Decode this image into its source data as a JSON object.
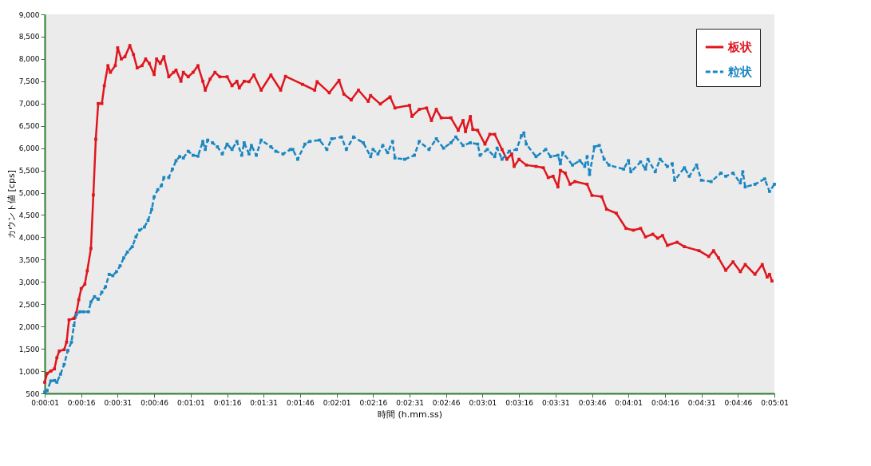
{
  "chart_data": {
    "type": "line",
    "xlabel": "時間 (h.mm.ss)",
    "ylabel": "カウント値 [cps]",
    "xlim": [
      1,
      301
    ],
    "ylim": [
      500,
      9000
    ],
    "xticks": [
      {
        "value": 1,
        "label": "0:00:01"
      },
      {
        "value": 16,
        "label": "0:00:16"
      },
      {
        "value": 31,
        "label": "0:00:31"
      },
      {
        "value": 46,
        "label": "0:00:46"
      },
      {
        "value": 61,
        "label": "0:01:01"
      },
      {
        "value": 76,
        "label": "0:01:16"
      },
      {
        "value": 91,
        "label": "0:01:31"
      },
      {
        "value": 106,
        "label": "0:01:46"
      },
      {
        "value": 121,
        "label": "0:02:01"
      },
      {
        "value": 136,
        "label": "0:02:16"
      },
      {
        "value": 151,
        "label": "0:02:31"
      },
      {
        "value": 166,
        "label": "0:02:46"
      },
      {
        "value": 181,
        "label": "0:03:01"
      },
      {
        "value": 196,
        "label": "0:03:16"
      },
      {
        "value": 211,
        "label": "0:03:31"
      },
      {
        "value": 226,
        "label": "0:03:46"
      },
      {
        "value": 241,
        "label": "0:04:01"
      },
      {
        "value": 256,
        "label": "0:04:16"
      },
      {
        "value": 271,
        "label": "0:04:31"
      },
      {
        "value": 286,
        "label": "0:04:46"
      },
      {
        "value": 301,
        "label": "0:05:01"
      }
    ],
    "yticks": [
      {
        "value": 500,
        "label": "500"
      },
      {
        "value": 1000,
        "label": "1,000"
      },
      {
        "value": 1500,
        "label": "1,500"
      },
      {
        "value": 2000,
        "label": "2,000"
      },
      {
        "value": 2500,
        "label": "2,500"
      },
      {
        "value": 3000,
        "label": "3,000"
      },
      {
        "value": 3500,
        "label": "3,500"
      },
      {
        "value": 4000,
        "label": "4,000"
      },
      {
        "value": 4500,
        "label": "4,500"
      },
      {
        "value": 5000,
        "label": "5,000"
      },
      {
        "value": 5500,
        "label": "5,500"
      },
      {
        "value": 6000,
        "label": "6,000"
      },
      {
        "value": 6500,
        "label": "6,500"
      },
      {
        "value": 7000,
        "label": "7,000"
      },
      {
        "value": 7500,
        "label": "7,500"
      },
      {
        "value": 8000,
        "label": "8,000"
      },
      {
        "value": 8500,
        "label": "8,500"
      },
      {
        "value": 9000,
        "label": "9,000"
      }
    ],
    "grid": false,
    "legend": "top right",
    "marker": "square",
    "series": [
      {
        "name": "板状",
        "color": "#e0161e",
        "line_style": "solid",
        "x": [
          1,
          2,
          3.5,
          5,
          6,
          7,
          9,
          10,
          11,
          13,
          14,
          15,
          16,
          17.5,
          18.5,
          20,
          21,
          22,
          23,
          24.5,
          25.5,
          27,
          28,
          30,
          31,
          32.5,
          34,
          36,
          37.5,
          39,
          41,
          42.5,
          44,
          46,
          47,
          48.5,
          50,
          52,
          54,
          55,
          57,
          58,
          60,
          62,
          64,
          66,
          67,
          69,
          71,
          73,
          76,
          78,
          80,
          81,
          83,
          85,
          87,
          90,
          94,
          98,
          100,
          107,
          112,
          113,
          118,
          122,
          124,
          127,
          130,
          134,
          135,
          139,
          143,
          145,
          151,
          152,
          155,
          158,
          160,
          162,
          164,
          168,
          171,
          173,
          174,
          176,
          177,
          179,
          182,
          184,
          186,
          189,
          191,
          193,
          194,
          196,
          199,
          203,
          206,
          208,
          210,
          212,
          213,
          215,
          217,
          219,
          224,
          226,
          230,
          232,
          236,
          240,
          243,
          246,
          248,
          251,
          253,
          255,
          257,
          261,
          264,
          270,
          274,
          276,
          278,
          281,
          284,
          287,
          289,
          293,
          296,
          298,
          299,
          300
        ],
        "values": [
          750,
          950,
          1000,
          1050,
          1300,
          1450,
          1480,
          1650,
          2150,
          2180,
          2300,
          2600,
          2850,
          2950,
          3250,
          3750,
          4950,
          6200,
          7000,
          7000,
          7400,
          7850,
          7700,
          7850,
          8250,
          8000,
          8050,
          8300,
          8100,
          7800,
          7850,
          8000,
          7900,
          7650,
          8000,
          7900,
          8050,
          7600,
          7700,
          7750,
          7500,
          7700,
          7600,
          7700,
          7850,
          7500,
          7300,
          7550,
          7700,
          7600,
          7600,
          7400,
          7500,
          7350,
          7500,
          7490,
          7640,
          7300,
          7640,
          7300,
          7610,
          7430,
          7300,
          7490,
          7240,
          7520,
          7210,
          7080,
          7300,
          7050,
          7180,
          6990,
          7150,
          6900,
          6960,
          6710,
          6870,
          6900,
          6620,
          6870,
          6680,
          6680,
          6400,
          6620,
          6370,
          6710,
          6420,
          6400,
          6090,
          6310,
          6310,
          5970,
          5750,
          5870,
          5590,
          5750,
          5620,
          5590,
          5560,
          5340,
          5370,
          5130,
          5500,
          5440,
          5190,
          5250,
          5190,
          4940,
          4910,
          4630,
          4540,
          4200,
          4160,
          4200,
          4010,
          4070,
          3980,
          4040,
          3820,
          3890,
          3790,
          3700,
          3570,
          3700,
          3540,
          3260,
          3450,
          3230,
          3390,
          3170,
          3390,
          3110,
          3170,
          3020
        ]
      },
      {
        "name": "粒状",
        "color": "#1a86c2",
        "line_style": "dashed",
        "x": [
          1,
          2,
          3.5,
          5,
          6,
          7.5,
          9,
          10.5,
          12,
          13,
          14,
          15.5,
          17,
          19,
          20,
          21.5,
          23,
          24.5,
          26,
          27.5,
          29,
          30.5,
          32,
          33.5,
          35,
          37,
          38.5,
          40,
          42,
          43.5,
          45,
          46,
          47.5,
          49,
          50,
          52,
          53.5,
          55,
          56.5,
          58,
          60,
          62,
          64,
          66,
          67,
          68,
          70,
          72,
          74,
          76,
          78,
          80,
          82,
          83,
          85,
          86,
          88,
          90,
          94,
          96,
          99,
          102,
          103,
          105,
          108,
          110,
          114,
          117,
          119,
          123,
          125,
          128,
          132,
          135,
          136,
          138,
          140,
          142,
          144,
          145,
          149,
          153,
          155,
          159,
          162,
          165,
          168,
          170,
          173,
          176,
          179,
          180,
          183,
          186,
          187,
          189,
          192,
          195,
          197,
          198,
          199,
          203,
          207,
          209,
          212,
          213,
          214,
          218,
          221,
          223,
          224,
          225,
          227,
          229,
          231,
          233,
          239,
          241,
          242,
          246,
          248,
          249,
          252,
          254,
          257,
          259,
          260,
          264,
          266,
          269,
          271,
          275,
          279,
          281,
          284,
          287,
          288,
          289,
          293,
          297,
          299,
          301
        ],
        "values": [
          530,
          560,
          780,
          790,
          750,
          930,
          1150,
          1460,
          1650,
          2020,
          2270,
          2330,
          2330,
          2330,
          2550,
          2670,
          2610,
          2770,
          2890,
          3170,
          3140,
          3230,
          3360,
          3540,
          3670,
          3790,
          4010,
          4160,
          4230,
          4380,
          4630,
          4910,
          5070,
          5160,
          5340,
          5340,
          5530,
          5720,
          5810,
          5780,
          5930,
          5840,
          5820,
          6150,
          5970,
          6180,
          6120,
          6030,
          5870,
          6090,
          5970,
          6150,
          5840,
          6120,
          5870,
          6060,
          5840,
          6180,
          6030,
          5930,
          5870,
          5970,
          5970,
          5750,
          6090,
          6150,
          6180,
          5970,
          6210,
          6250,
          5970,
          6250,
          6120,
          5810,
          5970,
          5870,
          6060,
          5900,
          6150,
          5780,
          5750,
          5840,
          6150,
          5970,
          6210,
          6000,
          6120,
          6250,
          6060,
          6120,
          6090,
          5840,
          5970,
          5810,
          6000,
          5750,
          5930,
          5970,
          6280,
          6340,
          6090,
          5810,
          5970,
          5810,
          5840,
          5650,
          5900,
          5620,
          5720,
          5590,
          5810,
          5410,
          6030,
          6060,
          5750,
          5620,
          5530,
          5720,
          5470,
          5690,
          5530,
          5750,
          5470,
          5750,
          5590,
          5650,
          5280,
          5560,
          5370,
          5620,
          5280,
          5250,
          5440,
          5370,
          5440,
          5220,
          5470,
          5130,
          5190,
          5310,
          5030,
          5190
        ]
      }
    ]
  }
}
